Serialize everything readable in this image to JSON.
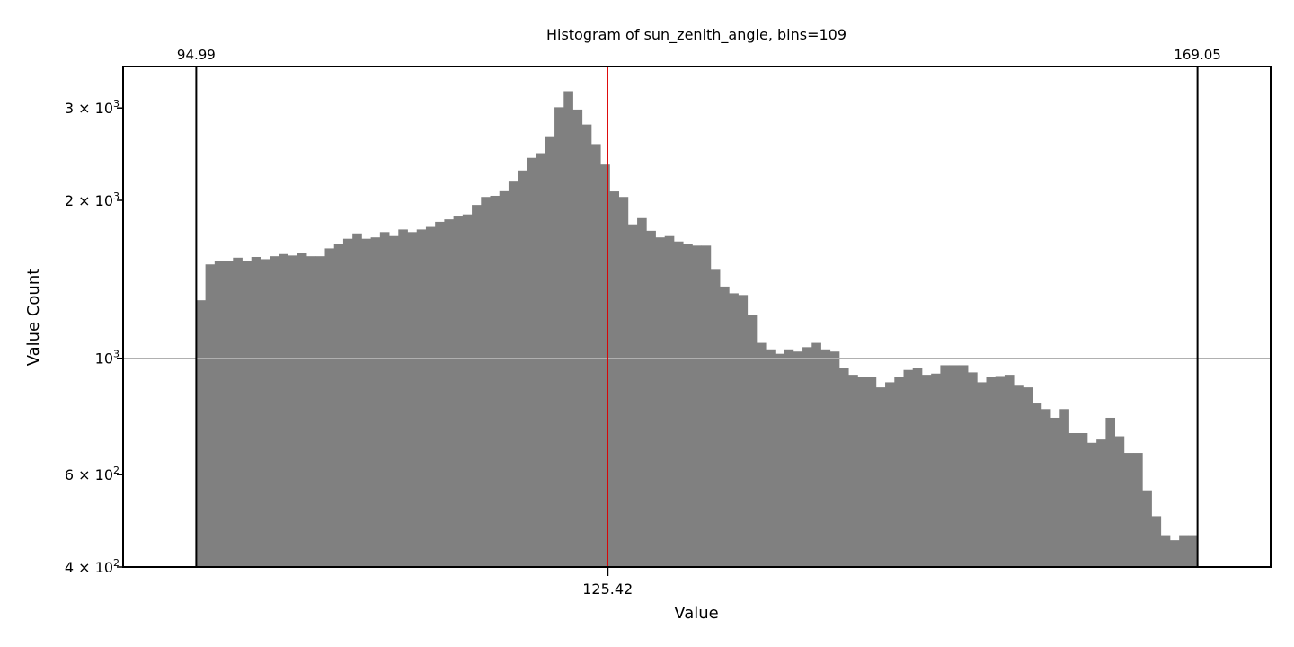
{
  "chart_data": {
    "type": "bar",
    "title": "Histogram of sun_zenith_angle, bins=109",
    "xlabel": "Value",
    "ylabel": "Value Count",
    "y_scale": "log",
    "ylim": [
      400,
      3600
    ],
    "xlim": [
      89.58,
      174.46
    ],
    "bins": 109,
    "bin_range": [
      94.99,
      169.05
    ],
    "markers": {
      "min": {
        "value": 94.99,
        "label": "94.99"
      },
      "max": {
        "value": 169.05,
        "label": "169.05"
      },
      "median": {
        "value": 125.42,
        "label": "125.42"
      }
    },
    "y_ticks": [
      {
        "value": 400,
        "mant": "4",
        "exp": "2"
      },
      {
        "value": 600,
        "mant": "6",
        "exp": "2"
      },
      {
        "value": 1000,
        "mant": "",
        "exp": "3"
      },
      {
        "value": 2000,
        "mant": "2",
        "exp": "3"
      },
      {
        "value": 3000,
        "mant": "3",
        "exp": "3"
      }
    ],
    "reference_line": {
      "value": 1000
    },
    "counts": [
      1290,
      1510,
      1530,
      1530,
      1555,
      1535,
      1560,
      1545,
      1565,
      1580,
      1570,
      1585,
      1565,
      1565,
      1620,
      1650,
      1690,
      1730,
      1690,
      1700,
      1740,
      1710,
      1760,
      1740,
      1760,
      1780,
      1820,
      1840,
      1870,
      1880,
      1960,
      2030,
      2040,
      2090,
      2180,
      2280,
      2410,
      2460,
      2650,
      3010,
      3230,
      2980,
      2790,
      2560,
      2340,
      2080,
      2030,
      1800,
      1850,
      1750,
      1700,
      1710,
      1670,
      1650,
      1640,
      1640,
      1480,
      1370,
      1330,
      1320,
      1210,
      1070,
      1040,
      1020,
      1040,
      1030,
      1050,
      1070,
      1040,
      1030,
      960,
      930,
      920,
      920,
      880,
      900,
      920,
      950,
      960,
      930,
      935,
      970,
      970,
      970,
      940,
      900,
      920,
      925,
      930,
      890,
      880,
      820,
      800,
      770,
      800,
      720,
      720,
      690,
      700,
      770,
      710,
      660,
      660,
      560,
      500,
      460,
      450,
      460,
      460
    ],
    "colors": {
      "bars": "#808080",
      "median_line": "#dd0000",
      "reference_line": "#b0b0b0",
      "axes": "#000000"
    }
  }
}
